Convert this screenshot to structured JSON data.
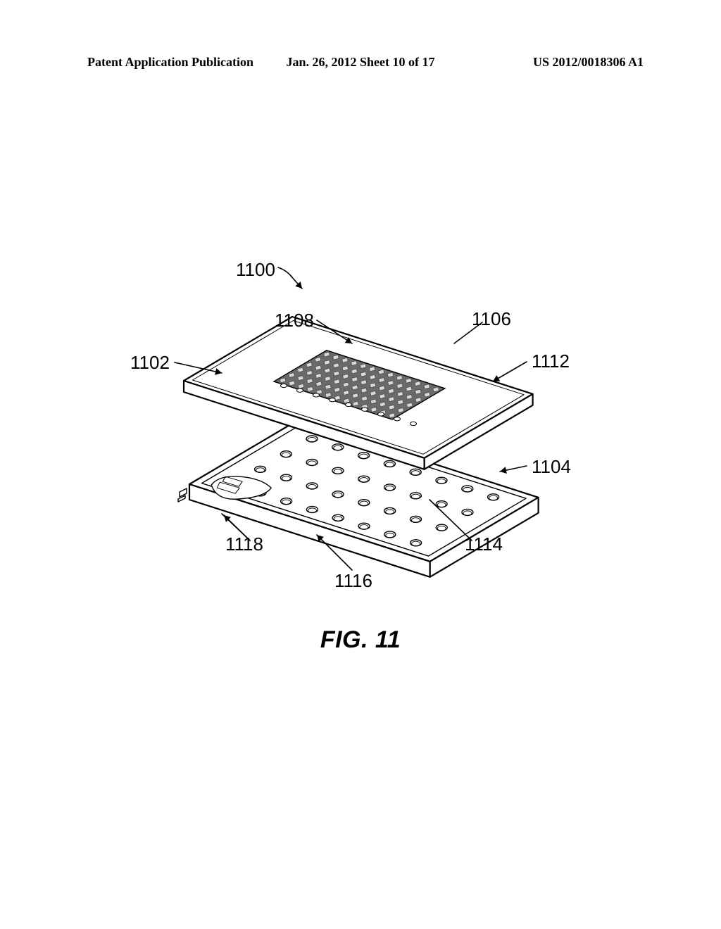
{
  "header": {
    "left": "Patent Application Publication",
    "center": "Jan. 26, 2012  Sheet 10 of 17",
    "right": "US 2012/0018306 A1"
  },
  "figure": {
    "caption_prefix": "FIG.",
    "caption_number": "11",
    "callouts": {
      "c1100": "1100",
      "c1102": "1102",
      "c1104": "1104",
      "c1106": "1106",
      "c1108": "1108",
      "c1112": "1112",
      "c1114": "1114",
      "c1116": "1116",
      "c1118": "1118"
    },
    "style": {
      "stroke": "#000000",
      "stroke_width_main": 2.2,
      "stroke_width_thin": 1.4,
      "background": "#ffffff",
      "grid_fill": "#6a6a6a",
      "hole_fill": "#ffffff"
    },
    "geometry": {
      "aspect_w": 740,
      "aspect_h": 520,
      "top_plate_grid": {
        "rows": 6,
        "cols": 13
      },
      "bottom_plate_holes": {
        "rows": 4,
        "cols": 8
      }
    }
  }
}
